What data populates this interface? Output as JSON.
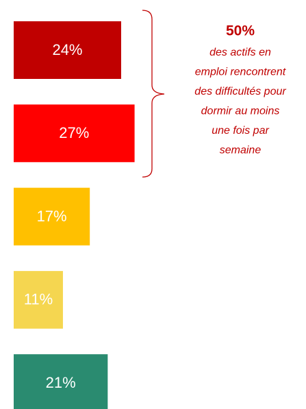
{
  "chart_data": {
    "type": "bar",
    "orientation": "horizontal",
    "values": [
      24,
      27,
      17,
      11,
      21
    ],
    "value_labels": [
      "24%",
      "27%",
      "17%",
      "11%",
      "21%"
    ],
    "colors": [
      "#c00000",
      "#ff0000",
      "#ffc000",
      "#f5d650",
      "#2a8b70"
    ],
    "annotation": {
      "title": "50%",
      "lines": [
        "des actifs en",
        "emploi rencontrent",
        "des difficultés pour",
        "dormir au moins",
        "une fois par",
        "semaine"
      ]
    }
  }
}
